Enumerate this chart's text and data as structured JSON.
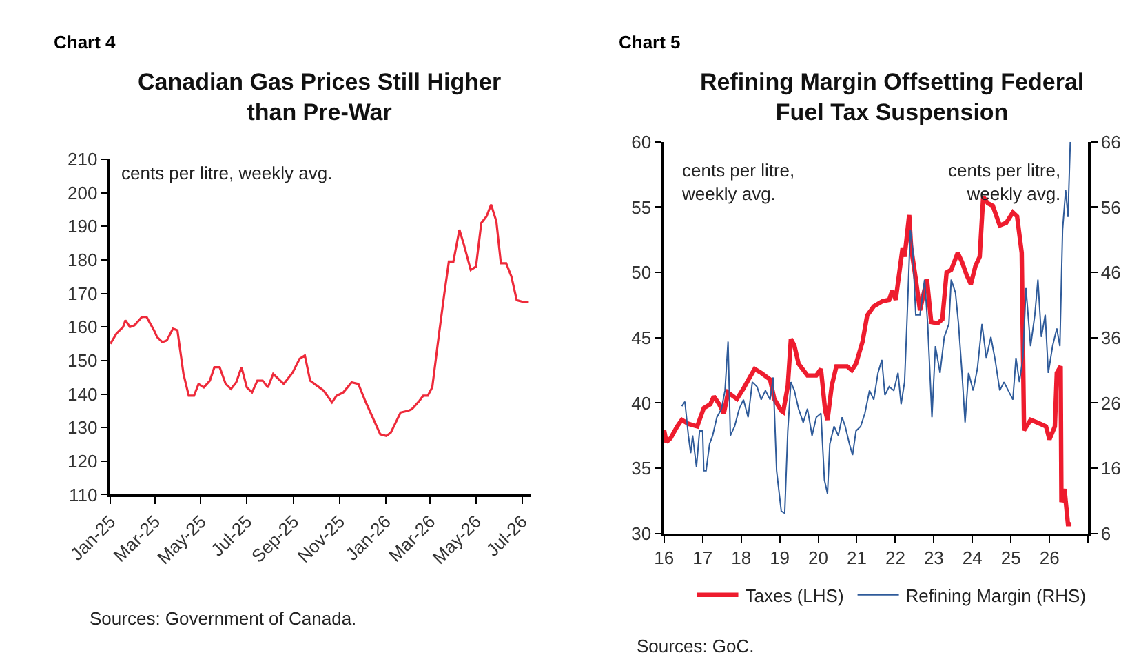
{
  "chart_data": [
    {
      "type": "line",
      "title": "Canadian Gas Prices Still Higher than Pre-War",
      "annotations": [
        "Chart 4",
        "cents per litre, weekly avg.",
        "Sources: Government of Canada."
      ],
      "x": [
        "2025-01-01",
        "2025-01-09",
        "2025-01-18",
        "2025-01-21",
        "2025-01-27",
        "2025-02-02",
        "2025-02-12",
        "2025-02-18",
        "2025-02-28",
        "2025-03-04",
        "2025-03-11",
        "2025-03-17",
        "2025-03-25",
        "2025-03-31",
        "2025-04-08",
        "2025-04-15",
        "2025-04-22",
        "2025-04-28",
        "2025-05-05",
        "2025-05-13",
        "2025-05-19",
        "2025-05-26",
        "2025-06-03",
        "2025-06-10",
        "2025-06-17",
        "2025-06-24",
        "2025-07-01",
        "2025-07-08",
        "2025-07-15",
        "2025-07-22",
        "2025-07-29",
        "2025-08-05",
        "2025-08-19",
        "2025-08-31",
        "2025-09-09",
        "2025-09-16",
        "2025-09-23",
        "2025-10-02",
        "2025-10-11",
        "2025-10-22",
        "2025-10-28",
        "2025-11-06",
        "2025-11-17",
        "2025-11-26",
        "2025-12-05",
        "2025-12-13",
        "2025-12-25",
        "2026-01-02",
        "2026-01-08",
        "2026-01-21",
        "2026-01-31",
        "2026-02-05",
        "2026-02-15",
        "2026-02-20",
        "2026-02-26",
        "2026-03-04",
        "2026-03-13",
        "2026-03-20",
        "2026-03-26",
        "2026-04-01",
        "2026-04-09",
        "2026-04-15",
        "2026-04-24",
        "2026-05-01",
        "2026-05-08",
        "2026-05-15",
        "2026-05-21",
        "2026-05-28",
        "2026-06-03",
        "2026-06-10",
        "2026-06-17",
        "2026-06-24",
        "2026-07-02",
        "2026-07-10"
      ],
      "series": [
        {
          "color": "#ee2a3a",
          "values": [
            155,
            158,
            160,
            162,
            160,
            160.5,
            163,
            163,
            159,
            157,
            155.5,
            156,
            159.5,
            159,
            146,
            139.5,
            139.5,
            143,
            142,
            144,
            148,
            148,
            143,
            141.5,
            143.5,
            148,
            142,
            140.5,
            144,
            144,
            142,
            146,
            143,
            146.5,
            150.5,
            151.5,
            144,
            142.5,
            141,
            137.5,
            139.5,
            140.5,
            143.5,
            143,
            138,
            134,
            128,
            127.5,
            128.5,
            134.5,
            135,
            135.5,
            138,
            139.5,
            139.5,
            142,
            158,
            170,
            179.5,
            179.5,
            189,
            184.5,
            177,
            178,
            191,
            193,
            196.5,
            191.5,
            179,
            179,
            175,
            168,
            167.5,
            167.5
          ]
        }
      ],
      "xlim": [
        "2025-01-01",
        "2026-07-12"
      ],
      "xticks": [
        {
          "value": "2025-01-01",
          "label": "Jan-25"
        },
        {
          "value": "2025-03-01",
          "label": "Mar-25"
        },
        {
          "value": "2025-05-01",
          "label": "May-25"
        },
        {
          "value": "2025-07-01",
          "label": "Jul-25"
        },
        {
          "value": "2025-09-01",
          "label": "Sep-25"
        },
        {
          "value": "2025-11-01",
          "label": "Nov-25"
        },
        {
          "value": "2026-01-01",
          "label": "Jan-26"
        },
        {
          "value": "2026-03-01",
          "label": "Mar-26"
        },
        {
          "value": "2026-05-01",
          "label": "May-26"
        },
        {
          "value": "2026-07-01",
          "label": "Jul-26"
        }
      ],
      "ylim": [
        110,
        210
      ],
      "yticks": [
        110,
        120,
        130,
        140,
        150,
        160,
        170,
        180,
        190,
        200,
        210
      ]
    },
    {
      "type": "line",
      "title": "Refining Margin Offsetting Federal Fuel Tax Suspension",
      "annotations": [
        "Chart 5",
        "cents per litre, weekly avg.",
        "cents per litre, weekly avg.",
        "Sources: GoC."
      ],
      "series": [
        {
          "name": "Taxes (LHS)",
          "color": "#ee1c2e",
          "axis": "y",
          "x": [
            2016.0,
            2016.06,
            2016.17,
            2016.34,
            2016.46,
            2016.63,
            2016.86,
            2017.03,
            2017.2,
            2017.29,
            2017.43,
            2017.55,
            2017.66,
            2017.89,
            2018.06,
            2018.23,
            2018.35,
            2018.52,
            2018.75,
            2018.86,
            2019.04,
            2019.09,
            2019.21,
            2019.29,
            2019.38,
            2019.49,
            2019.72,
            2019.95,
            2020.07,
            2020.18,
            2020.24,
            2020.35,
            2020.47,
            2020.75,
            2020.87,
            2020.98,
            2021.15,
            2021.27,
            2021.44,
            2021.67,
            2021.84,
            2021.92,
            2022.01,
            2022.19,
            2022.24,
            2022.36,
            2022.41,
            2022.53,
            2022.64,
            2022.82,
            2022.93,
            2023.1,
            2023.22,
            2023.33,
            2023.45,
            2023.62,
            2023.73,
            2023.85,
            2023.96,
            2024.08,
            2024.19,
            2024.28,
            2024.4,
            2024.53,
            2024.71,
            2024.88,
            2025.05,
            2025.16,
            2025.28,
            2025.34,
            2025.51,
            2025.68,
            2025.91,
            2026.0,
            2026.14,
            2026.19,
            2026.29,
            2026.31,
            2026.39,
            2026.48,
            2026.57
          ],
          "values": [
            37.9,
            37.0,
            37.3,
            38.2,
            38.7,
            38.4,
            38.2,
            39.6,
            39.9,
            40.5,
            39.9,
            39.2,
            40.8,
            40.3,
            41.1,
            42.0,
            42.6,
            42.3,
            41.8,
            40.3,
            39.4,
            39.3,
            41.3,
            44.9,
            44.4,
            43.0,
            42.1,
            42.1,
            42.6,
            39.4,
            38.7,
            41.3,
            42.8,
            42.8,
            42.5,
            43.0,
            44.7,
            46.7,
            47.4,
            47.8,
            47.9,
            48.6,
            47.9,
            51.9,
            51.2,
            54.4,
            51.9,
            49.5,
            47.1,
            49.5,
            46.2,
            46.1,
            46.4,
            50.0,
            50.2,
            51.5,
            50.8,
            49.8,
            49.1,
            50.5,
            51.2,
            55.8,
            55.3,
            55.1,
            53.6,
            53.8,
            54.6,
            54.3,
            51.5,
            37.9,
            38.7,
            38.5,
            38.2,
            37.2,
            38.2,
            42.3,
            42.8,
            32.4,
            33.4,
            30.7,
            30.7
          ]
        },
        {
          "name": "Refining Margin (RHS)",
          "color": "#2f5b9a",
          "axis": "y2",
          "x": [
            2016.46,
            2016.54,
            2016.63,
            2016.69,
            2016.74,
            2016.84,
            2016.92,
            2017.0,
            2017.03,
            2017.09,
            2017.18,
            2017.26,
            2017.37,
            2017.49,
            2017.58,
            2017.66,
            2017.72,
            2017.83,
            2017.95,
            2018.06,
            2018.18,
            2018.29,
            2018.41,
            2018.52,
            2018.63,
            2018.75,
            2018.83,
            2018.92,
            2019.04,
            2019.13,
            2019.21,
            2019.29,
            2019.38,
            2019.49,
            2019.61,
            2019.72,
            2019.84,
            2019.95,
            2020.07,
            2020.16,
            2020.24,
            2020.3,
            2020.41,
            2020.52,
            2020.62,
            2020.7,
            2020.81,
            2020.89,
            2020.98,
            2021.1,
            2021.21,
            2021.33,
            2021.44,
            2021.55,
            2021.65,
            2021.73,
            2021.84,
            2021.96,
            2022.07,
            2022.15,
            2022.24,
            2022.3,
            2022.39,
            2022.45,
            2022.53,
            2022.64,
            2022.76,
            2022.84,
            2022.95,
            2023.04,
            2023.16,
            2023.27,
            2023.39,
            2023.45,
            2023.56,
            2023.64,
            2023.73,
            2023.81,
            2023.9,
            2024.02,
            2024.13,
            2024.25,
            2024.36,
            2024.48,
            2024.59,
            2024.71,
            2024.82,
            2024.93,
            2025.05,
            2025.13,
            2025.22,
            2025.31,
            2025.39,
            2025.51,
            2025.62,
            2025.7,
            2025.79,
            2025.89,
            2025.97,
            2026.08,
            2026.19,
            2026.27,
            2026.34,
            2026.42,
            2026.48,
            2026.54
          ],
          "values": [
            25.5,
            26.2,
            21.0,
            18.3,
            21.0,
            16.2,
            21.7,
            21.7,
            15.6,
            15.6,
            19.7,
            21.0,
            23.8,
            25.1,
            27.9,
            35.4,
            21.0,
            22.4,
            25.1,
            26.5,
            23.8,
            29.2,
            28.5,
            26.5,
            27.9,
            26.5,
            29.9,
            15.6,
            9.4,
            9.1,
            21.7,
            29.2,
            27.9,
            25.1,
            23.0,
            25.1,
            21.0,
            23.8,
            24.4,
            14.2,
            12.1,
            19.7,
            22.4,
            21.0,
            23.8,
            22.4,
            19.7,
            18.0,
            21.7,
            22.4,
            24.4,
            27.9,
            26.5,
            30.6,
            32.6,
            27.2,
            28.5,
            27.9,
            30.6,
            25.8,
            29.2,
            38.1,
            52.5,
            49.7,
            39.5,
            39.5,
            44.9,
            38.1,
            23.8,
            34.7,
            30.6,
            36.1,
            38.1,
            44.9,
            42.9,
            38.1,
            30.6,
            23.0,
            30.6,
            27.9,
            31.3,
            38.1,
            32.9,
            36.1,
            32.6,
            27.9,
            29.2,
            27.9,
            26.5,
            32.9,
            29.2,
            32.9,
            43.6,
            34.7,
            39.5,
            44.9,
            36.1,
            39.5,
            30.6,
            34.7,
            37.4,
            34.7,
            52.5,
            58.6,
            54.5,
            66.0
          ]
        }
      ],
      "xlim": [
        2016,
        2027
      ],
      "xticks": [
        {
          "value": 2016,
          "label": "16"
        },
        {
          "value": 2017,
          "label": "17"
        },
        {
          "value": 2018,
          "label": "18"
        },
        {
          "value": 2019,
          "label": "19"
        },
        {
          "value": 2020,
          "label": "20"
        },
        {
          "value": 2021,
          "label": "21"
        },
        {
          "value": 2022,
          "label": "22"
        },
        {
          "value": 2023,
          "label": "23"
        },
        {
          "value": 2024,
          "label": "24"
        },
        {
          "value": 2025,
          "label": "25"
        },
        {
          "value": 2026,
          "label": "26"
        },
        {
          "value": 2027,
          "label": null
        }
      ],
      "ylim": [
        30,
        60
      ],
      "yticks": [
        30,
        35,
        40,
        45,
        50,
        55,
        60
      ],
      "y2lim": [
        6,
        66
      ],
      "y2ticks": [
        6,
        16,
        26,
        36,
        46,
        56,
        66
      ],
      "legend": "bottom"
    }
  ]
}
